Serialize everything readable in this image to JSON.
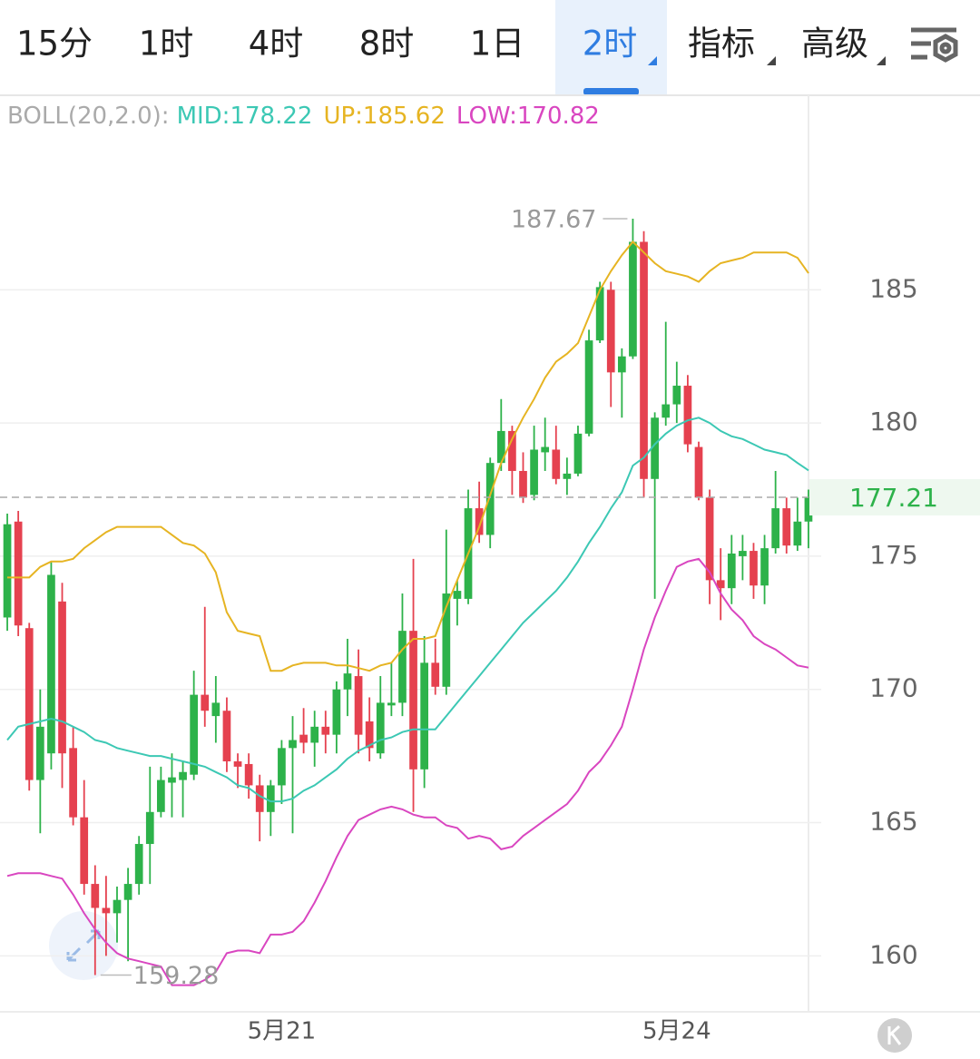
{
  "tabs": [
    "15分",
    "1时",
    "4时",
    "8时",
    "1日",
    "2时",
    "指标",
    "高级"
  ],
  "active_tab": 5,
  "chart_data": {
    "type": "candlestick",
    "indicator": "BOLL(20,2.0):",
    "categories": [
      null,
      null,
      null,
      null,
      null,
      null,
      null,
      null,
      null,
      null,
      null,
      null,
      null,
      null,
      null,
      null,
      null,
      null,
      null,
      null,
      null,
      null,
      null,
      null,
      null,
      "5月21",
      null,
      null,
      null,
      null,
      null,
      null,
      null,
      null,
      null,
      null,
      null,
      null,
      null,
      null,
      null,
      null,
      null,
      null,
      null,
      null,
      null,
      null,
      null,
      null,
      null,
      null,
      null,
      null,
      null,
      null,
      null,
      null,
      null,
      null,
      null,
      "5月24",
      null,
      null,
      null,
      null,
      null,
      null,
      null,
      null,
      null,
      null,
      null,
      null
    ],
    "up_color": "#2db24a",
    "down_color": "#e5414f",
    "ohlc": {
      "open": [
        172.7,
        176.3,
        172.3,
        166.6,
        167.6,
        173.3,
        167.8,
        165.2,
        162.7,
        161.8,
        161.6,
        162.1,
        162.7,
        164.2,
        165.4,
        166.5,
        166.6,
        166.8,
        169.8,
        169.0,
        169.2,
        167.3,
        167.2,
        166.4,
        165.4,
        166.4,
        167.8,
        168.3,
        168.0,
        168.6,
        168.3,
        170.0,
        170.5,
        168.8,
        167.6,
        169.4,
        169.5,
        172.2,
        167.0,
        171.0,
        170.1,
        173.4,
        173.4,
        176.8,
        175.8,
        178.5,
        179.7,
        178.2,
        177.3,
        178.9,
        179.0,
        177.9,
        178.1,
        179.6,
        183.1,
        185.0,
        181.9,
        182.5,
        186.8,
        177.9,
        180.2,
        180.7,
        181.4,
        179.1,
        177.2,
        174.1,
        173.8,
        175.0,
        175.2,
        173.9,
        175.3,
        176.8,
        175.4,
        176.3
      ],
      "high": [
        176.6,
        176.7,
        172.5,
        170.0,
        174.8,
        174.0,
        168.6,
        166.6,
        163.4,
        163.0,
        162.6,
        163.3,
        164.5,
        167.1,
        167.1,
        167.6,
        167.3,
        170.7,
        173.1,
        170.5,
        169.7,
        167.6,
        167.6,
        166.8,
        166.6,
        168.1,
        169.0,
        169.3,
        169.2,
        169.2,
        170.3,
        171.9,
        171.5,
        169.7,
        170.5,
        171.0,
        173.6,
        174.9,
        172.0,
        171.9,
        176.0,
        174.1,
        177.5,
        177.8,
        178.7,
        180.9,
        179.9,
        178.9,
        179.9,
        180.2,
        179.9,
        178.7,
        179.9,
        183.5,
        185.3,
        185.3,
        182.8,
        187.67,
        187.2,
        180.4,
        183.8,
        182.3,
        181.8,
        179.3,
        177.5,
        175.3,
        175.8,
        175.8,
        175.5,
        175.8,
        178.2,
        177.2,
        177.2,
        177.5
      ],
      "low": [
        172.2,
        172.0,
        166.2,
        164.6,
        167.0,
        166.3,
        164.9,
        162.3,
        159.28,
        160.0,
        160.5,
        159.8,
        162.3,
        162.7,
        165.2,
        165.2,
        165.2,
        166.6,
        168.6,
        168.0,
        166.9,
        166.3,
        165.9,
        164.3,
        164.5,
        165.7,
        164.6,
        167.6,
        167.1,
        167.6,
        167.6,
        169.0,
        167.6,
        167.3,
        167.4,
        169.0,
        169.0,
        165.4,
        166.3,
        169.8,
        169.8,
        172.4,
        173.2,
        175.5,
        175.3,
        178.2,
        177.3,
        177.0,
        177.1,
        178.2,
        177.7,
        177.3,
        178.0,
        179.5,
        183.0,
        180.6,
        180.2,
        182.4,
        177.2,
        173.4,
        179.9,
        180.0,
        178.9,
        177.1,
        173.2,
        172.6,
        173.2,
        174.1,
        173.4,
        173.2,
        175.1,
        175.1,
        175.2,
        175.3
      ],
      "close": [
        176.2,
        172.4,
        166.6,
        168.6,
        174.3,
        167.6,
        165.2,
        162.7,
        161.8,
        161.6,
        162.1,
        162.7,
        164.2,
        165.4,
        166.6,
        166.7,
        166.9,
        169.8,
        169.2,
        169.5,
        167.3,
        167.1,
        166.4,
        165.4,
        166.4,
        167.8,
        168.1,
        168.0,
        168.6,
        168.3,
        170.0,
        170.6,
        168.3,
        167.8,
        169.5,
        169.5,
        172.2,
        167.0,
        171.0,
        170.1,
        173.6,
        173.7,
        176.8,
        175.8,
        178.5,
        179.7,
        178.2,
        177.2,
        179.0,
        179.1,
        177.9,
        178.1,
        179.6,
        183.1,
        185.1,
        181.9,
        182.5,
        186.8,
        177.9,
        180.2,
        180.7,
        181.4,
        179.2,
        177.2,
        174.1,
        173.8,
        175.1,
        175.2,
        173.9,
        175.3,
        176.8,
        175.4,
        176.3,
        177.21
      ]
    },
    "lines": [
      {
        "name": "MID:",
        "color": "#3cc8b4",
        "values": [
          168.1,
          168.6,
          168.7,
          168.8,
          168.9,
          168.8,
          168.6,
          168.4,
          168.1,
          168.0,
          167.8,
          167.7,
          167.6,
          167.5,
          167.5,
          167.4,
          167.3,
          167.2,
          167.1,
          166.9,
          166.7,
          166.4,
          166.3,
          166.0,
          165.8,
          165.8,
          165.9,
          166.2,
          166.4,
          166.7,
          167.0,
          167.4,
          167.7,
          167.9,
          168.1,
          168.2,
          168.4,
          168.5,
          168.5,
          168.5,
          169.0,
          169.5,
          170.0,
          170.5,
          171.0,
          171.5,
          172.0,
          172.5,
          172.9,
          173.3,
          173.7,
          174.2,
          174.8,
          175.5,
          176.1,
          176.8,
          177.4,
          178.4,
          178.7,
          179.2,
          179.6,
          179.9,
          180.1,
          180.2,
          180.0,
          179.7,
          179.5,
          179.4,
          179.2,
          179.0,
          178.9,
          178.8,
          178.5,
          178.22
        ]
      },
      {
        "name": "UP:",
        "color": "#e6b422",
        "values": [
          174.2,
          174.2,
          174.2,
          174.6,
          174.8,
          174.8,
          174.9,
          175.3,
          175.6,
          175.9,
          176.1,
          176.1,
          176.1,
          176.1,
          176.1,
          175.8,
          175.5,
          175.4,
          175.1,
          174.4,
          172.9,
          172.2,
          172.1,
          172.0,
          170.7,
          170.7,
          170.9,
          171.0,
          171.0,
          171.0,
          170.9,
          170.9,
          170.8,
          170.7,
          170.9,
          171.0,
          171.5,
          171.9,
          171.9,
          172.0,
          173.1,
          174.1,
          175.1,
          176.1,
          177.3,
          178.5,
          179.4,
          180.2,
          180.9,
          181.7,
          182.3,
          182.6,
          183.0,
          184.0,
          185.0,
          185.7,
          186.3,
          186.8,
          186.4,
          186.0,
          185.7,
          185.6,
          185.5,
          185.3,
          185.7,
          186.0,
          186.1,
          186.2,
          186.4,
          186.4,
          186.4,
          186.4,
          186.2,
          185.62
        ]
      },
      {
        "name": "LOW:",
        "color": "#d946c0",
        "values": [
          163.0,
          163.1,
          163.1,
          163.1,
          163.0,
          162.9,
          162.3,
          161.6,
          161.0,
          160.5,
          160.1,
          159.9,
          159.8,
          159.7,
          159.6,
          158.9,
          158.9,
          158.9,
          159.1,
          159.4,
          160.1,
          160.2,
          160.2,
          160.1,
          160.8,
          160.8,
          160.9,
          161.3,
          162.0,
          162.8,
          163.7,
          164.5,
          165.1,
          165.3,
          165.5,
          165.6,
          165.5,
          165.3,
          165.2,
          165.2,
          164.9,
          164.8,
          164.4,
          164.5,
          164.4,
          164.0,
          164.1,
          164.5,
          164.8,
          165.1,
          165.4,
          165.7,
          166.2,
          166.9,
          167.3,
          167.9,
          168.6,
          170.0,
          171.5,
          172.7,
          173.7,
          174.6,
          174.8,
          174.9,
          174.4,
          173.6,
          173.0,
          172.6,
          172.0,
          171.7,
          171.5,
          171.2,
          170.9,
          170.82
        ]
      }
    ],
    "ylim": [
      157.9,
      192.3
    ],
    "yticks": [
      160,
      165,
      170,
      175,
      180,
      185
    ],
    "grid": true,
    "max_index": 57,
    "min_index": 8
  }
}
